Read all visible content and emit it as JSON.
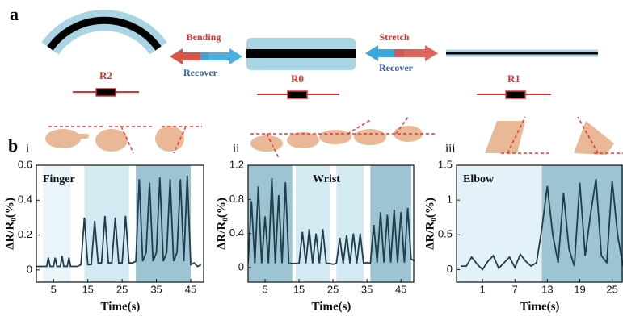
{
  "figure": {
    "panel_a": "a",
    "panel_b": "b",
    "r2": "R2",
    "r0": "R0",
    "r1": "R1",
    "bending": "Bending",
    "recover_left": "Recover",
    "stretch": "Stretch",
    "recover_right": "Recover",
    "sub_i": "i",
    "sub_ii": "ii",
    "sub_iii": "iii"
  },
  "chart_data": [
    {
      "type": "line",
      "annotation": "Finger",
      "xlabel": "Time(s)",
      "ylabel": "ΔR/R₀(%)",
      "xlim": [
        0,
        49
      ],
      "ylim": [
        -0.07,
        0.6
      ],
      "xticks": [
        5,
        15,
        25,
        35,
        45
      ],
      "yticks": [
        0,
        0.2,
        0.4,
        0.6
      ],
      "regions": [
        {
          "from": 2,
          "to": 10,
          "color": "#eaf5f9"
        },
        {
          "from": 14,
          "to": 27,
          "color": "#d3eaf2"
        },
        {
          "from": 29,
          "to": 45,
          "color": "#9cc4d2"
        }
      ],
      "series": [
        {
          "color": "#1f3d4a",
          "x": [
            0,
            2,
            3,
            3.5,
            4,
            5,
            5.5,
            6,
            7,
            7.5,
            8,
            9,
            9.5,
            10,
            12,
            13,
            14,
            15,
            16,
            17,
            18,
            19,
            20,
            21,
            22,
            23,
            24,
            25,
            26,
            27,
            28,
            29,
            30,
            31,
            32,
            33,
            34,
            35,
            36,
            37,
            38,
            39,
            40,
            41,
            42,
            43,
            44,
            45,
            46,
            47,
            48
          ],
          "values": [
            0.02,
            0.02,
            0.02,
            0.07,
            0.02,
            0.02,
            0.07,
            0.02,
            0.02,
            0.08,
            0.02,
            0.02,
            0.07,
            0.02,
            0.02,
            0.03,
            0.3,
            0.03,
            0.03,
            0.28,
            0.04,
            0.04,
            0.31,
            0.04,
            0.04,
            0.3,
            0.04,
            0.04,
            0.31,
            0.04,
            0.04,
            0.05,
            0.52,
            0.05,
            0.1,
            0.5,
            0.05,
            0.1,
            0.53,
            0.05,
            0.1,
            0.52,
            0.05,
            0.1,
            0.52,
            0.05,
            0.54,
            0.03,
            0.04,
            0.02,
            0.03
          ]
        }
      ]
    },
    {
      "type": "line",
      "annotation": "Wrist",
      "xlabel": "Time(s)",
      "ylabel": "ΔR/R₀(%)",
      "xlim": [
        0,
        49
      ],
      "ylim": [
        -0.17,
        1.2
      ],
      "xticks": [
        5,
        15,
        25,
        35,
        45
      ],
      "yticks": [
        0,
        0.4,
        0.8,
        1.2
      ],
      "regions": [
        {
          "from": 0,
          "to": 13,
          "color": "#9cc4d2"
        },
        {
          "from": 14,
          "to": 24,
          "color": "#d3eaf2"
        },
        {
          "from": 26,
          "to": 34,
          "color": "#d3eaf2"
        },
        {
          "from": 36,
          "to": 48,
          "color": "#9cc4d2"
        }
      ],
      "series": [
        {
          "color": "#1f3d4a",
          "x": [
            0,
            1,
            2,
            3,
            4,
            5,
            6,
            7,
            8,
            9,
            10,
            11,
            12,
            13,
            14,
            15,
            16,
            17,
            18,
            19,
            20,
            21,
            22,
            23,
            24,
            25,
            26,
            27,
            28,
            29,
            30,
            31,
            32,
            33,
            34,
            35,
            36,
            37,
            38,
            39,
            40,
            41,
            42,
            43,
            44,
            45,
            46,
            47,
            48,
            49
          ],
          "values": [
            0.05,
            0.78,
            0.05,
            0.95,
            0.05,
            0.6,
            0.05,
            1.05,
            0.05,
            0.85,
            0.05,
            1.0,
            0.05,
            0.05,
            0.05,
            0.05,
            0.42,
            0.05,
            0.45,
            0.05,
            0.4,
            0.05,
            0.45,
            0.05,
            0.05,
            0.04,
            0.05,
            0.35,
            0.05,
            0.38,
            0.05,
            0.4,
            0.05,
            0.4,
            0.05,
            0.06,
            0.05,
            0.5,
            0.06,
            0.65,
            0.06,
            0.62,
            0.06,
            0.68,
            0.06,
            0.65,
            0.06,
            0.7,
            0.1,
            0.08
          ]
        }
      ]
    },
    {
      "type": "line",
      "annotation": "Elbow",
      "xlabel": "Time(s)",
      "ylabel": "ΔR/R₀(%)",
      "xlim": [
        -3.8,
        27
      ],
      "ylim": [
        -0.18,
        1.5
      ],
      "xticks": [
        1,
        7,
        13,
        19,
        25
      ],
      "yticks": [
        0,
        0.5,
        1,
        1.5
      ],
      "regions": [
        {
          "from": -3.8,
          "to": 12,
          "color": "#e3f2f8"
        },
        {
          "from": 12,
          "to": 27,
          "color": "#9cc4d2"
        }
      ],
      "series": [
        {
          "color": "#1f3d4a",
          "x": [
            -3,
            -2,
            -1,
            0,
            1,
            2,
            3,
            4,
            5,
            6,
            7,
            8,
            9,
            10,
            11,
            12,
            13,
            14,
            15,
            16,
            17,
            18,
            19,
            20,
            21,
            22,
            23,
            24,
            25,
            26,
            27
          ],
          "values": [
            0.05,
            0.05,
            0.18,
            0.08,
            0.0,
            0.12,
            0.2,
            0.02,
            0.1,
            0.18,
            0.03,
            0.22,
            0.12,
            0.05,
            0.1,
            0.6,
            1.2,
            0.5,
            0.1,
            1.1,
            0.3,
            0.05,
            1.25,
            0.2,
            0.8,
            1.3,
            0.2,
            0.1,
            1.28,
            0.5,
            0.05
          ]
        }
      ]
    }
  ]
}
